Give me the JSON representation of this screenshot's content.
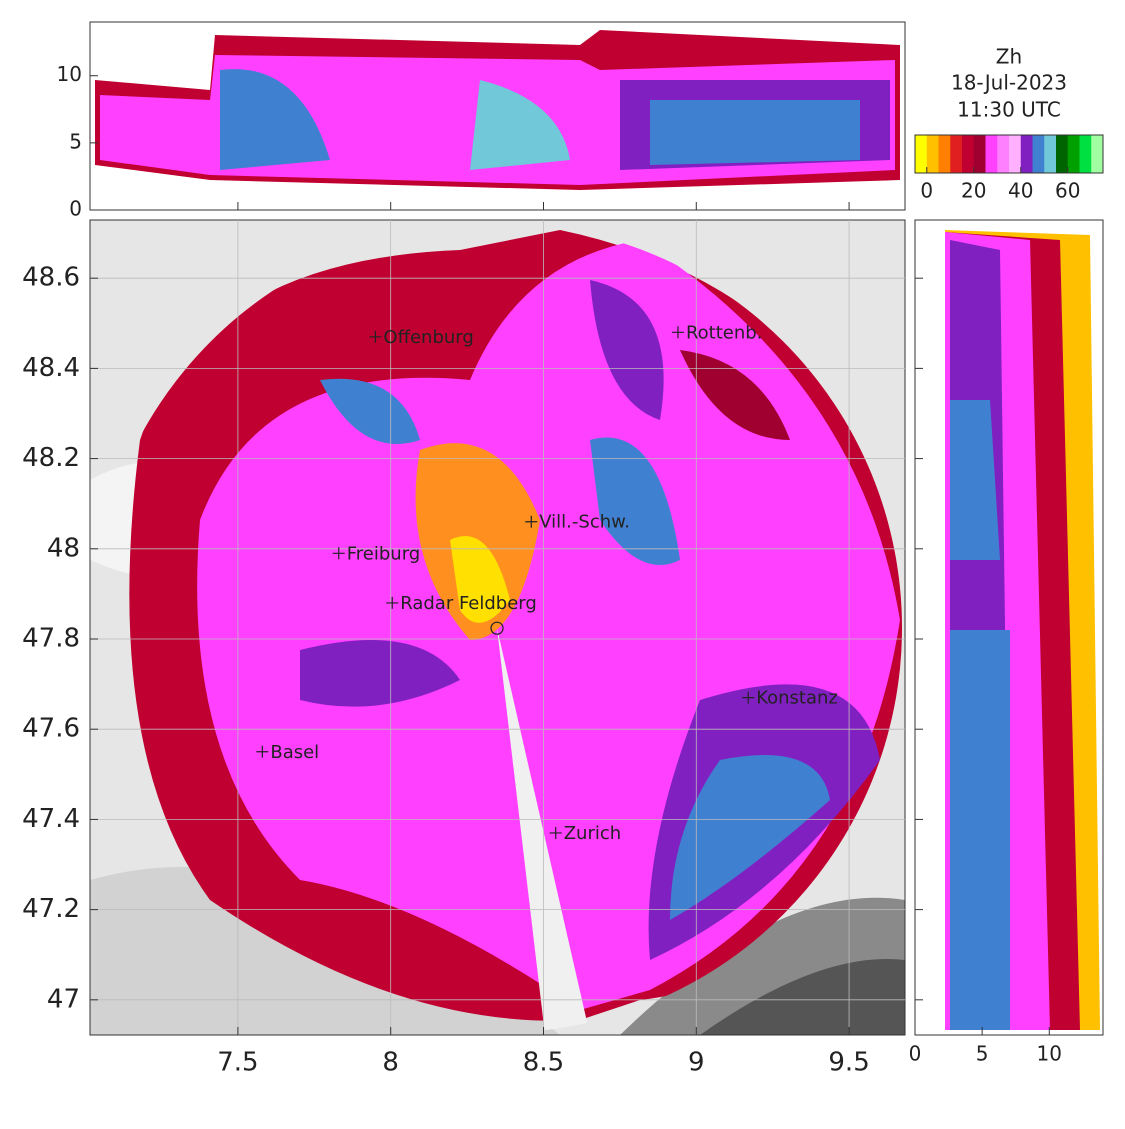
{
  "title": "Zh",
  "date": "18-Jul-2023",
  "time": "11:30 UTC",
  "map": {
    "xlim": [
      7.016,
      9.683
    ],
    "ylim": [
      46.922,
      48.729
    ],
    "xticks": [
      7.5,
      8,
      8.5,
      9,
      9.5
    ],
    "yticks": [
      47,
      47.2,
      47.4,
      47.6,
      47.8,
      48,
      48.2,
      48.4,
      48.6
    ],
    "radar": {
      "lon": 8.348,
      "lat": 47.824
    },
    "places": [
      {
        "name": "Offenburg",
        "lon": 7.95,
        "lat": 48.47
      },
      {
        "name": "Rottenb.",
        "lon": 8.94,
        "lat": 48.48
      },
      {
        "name": "Vill.-Schw.",
        "lon": 8.46,
        "lat": 48.06
      },
      {
        "name": "Freiburg",
        "lon": 7.83,
        "lat": 47.99
      },
      {
        "name": "Radar Feldberg",
        "lon": 8.005,
        "lat": 47.88
      },
      {
        "name": "Konstanz",
        "lon": 9.17,
        "lat": 47.67
      },
      {
        "name": "Basel",
        "lon": 7.58,
        "lat": 47.55
      },
      {
        "name": "Zurich",
        "lon": 8.54,
        "lat": 47.37
      }
    ]
  },
  "top_panel": {
    "ylim": [
      0,
      14
    ],
    "yticks": [
      0,
      5,
      10
    ]
  },
  "side_panel": {
    "xlim": [
      0,
      14
    ],
    "xticks": [
      0,
      5,
      10
    ]
  },
  "colorbar": {
    "clim": [
      -5,
      75
    ],
    "ticks": [
      0,
      20,
      40,
      60
    ],
    "colors": [
      "#ffff00",
      "#ffc000",
      "#ff8000",
      "#e02020",
      "#c00030",
      "#a00030",
      "#ff40ff",
      "#ff80ff",
      "#ffb0ff",
      "#8020c0",
      "#4080d0",
      "#70c8d8",
      "#006400",
      "#00a000",
      "#00e040",
      "#a0ffa0"
    ]
  }
}
